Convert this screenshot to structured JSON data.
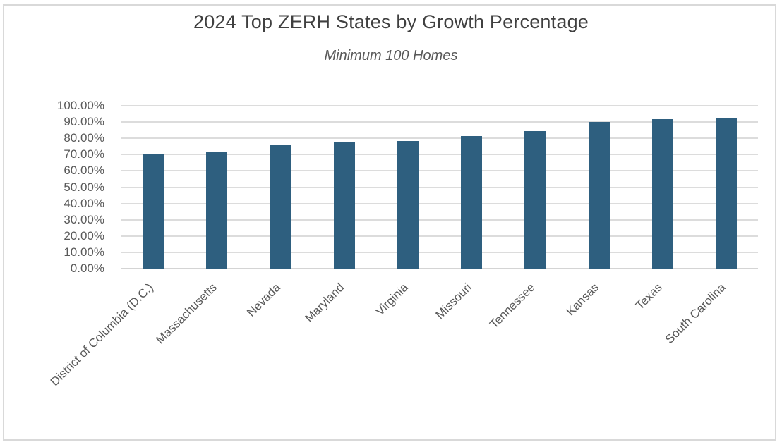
{
  "chart_data": {
    "type": "bar",
    "title": "2024 Top ZERH States by Growth Percentage",
    "subtitle": "Minimum 100 Homes",
    "categories": [
      "District of Columbia (D.C.)",
      "Massachusetts",
      "Nevada",
      "Maryland",
      "Virginia",
      "Missouri",
      "Tennessee",
      "Kansas",
      "Texas",
      "South Carolina"
    ],
    "values": [
      70.0,
      71.7,
      76.2,
      77.3,
      78.4,
      81.4,
      84.4,
      90.0,
      91.9,
      92.3
    ],
    "unit": "%",
    "xlabel": "",
    "ylabel": "",
    "ylim": [
      0,
      100
    ],
    "ytick_step": 10,
    "ytick_labels": [
      "0.00%",
      "10.00%",
      "20.00%",
      "30.00%",
      "40.00%",
      "50.00%",
      "60.00%",
      "70.00%",
      "80.00%",
      "90.00%",
      "100.00%"
    ],
    "grid": true,
    "legend": "none",
    "colors": {
      "bar_fill": "#2E5F7F",
      "gridline": "#DCDCDC",
      "axis_line": "#D4D4D4",
      "title_text": "#404040",
      "subtitle_text": "#595959",
      "tick_text": "#595959",
      "frame_border": "#D9D9D9",
      "background": "#FFFFFF"
    }
  }
}
